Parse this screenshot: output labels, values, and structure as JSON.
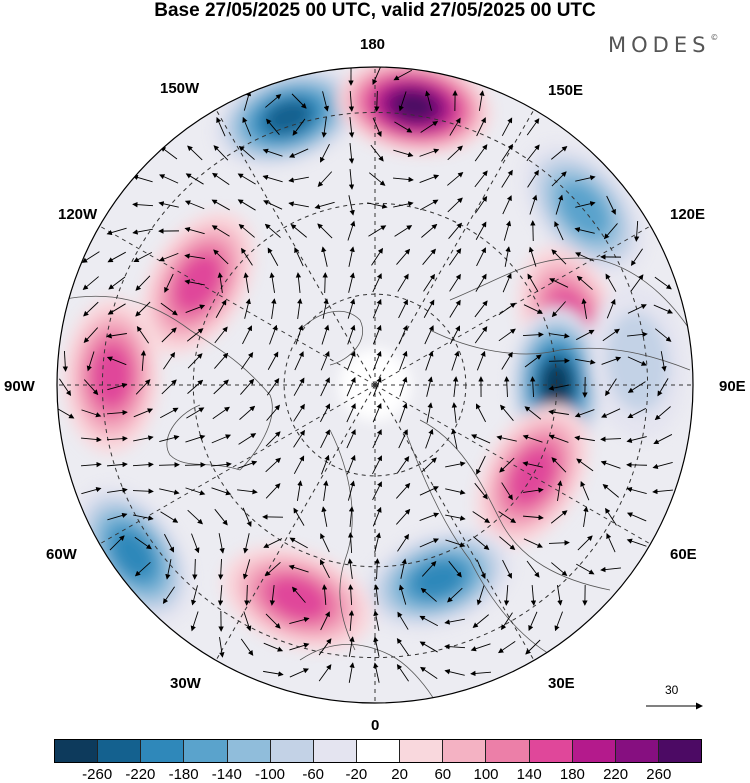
{
  "title": "Base 27/05/2025 00 UTC, valid 27/05/2025 00 UTC",
  "brand": "MODES",
  "brand_mark": "©",
  "longitude_labels": [
    {
      "text": "180",
      "pos": "top"
    },
    {
      "text": "150W",
      "pos": "upper-left"
    },
    {
      "text": "150E",
      "pos": "upper-right"
    },
    {
      "text": "120W",
      "pos": "left-upper"
    },
    {
      "text": "120E",
      "pos": "right-upper"
    },
    {
      "text": "90W",
      "pos": "left"
    },
    {
      "text": "90E",
      "pos": "right"
    },
    {
      "text": "60W",
      "pos": "left-lower"
    },
    {
      "text": "60E",
      "pos": "right-lower"
    },
    {
      "text": "30W",
      "pos": "lower-left"
    },
    {
      "text": "30E",
      "pos": "lower-right"
    },
    {
      "text": "0",
      "pos": "bottom"
    }
  ],
  "reference_vector": "30",
  "colorbar": {
    "ticks": [
      "-260",
      "-220",
      "-180",
      "-140",
      "-100",
      "-60",
      "-20",
      "20",
      "60",
      "100",
      "140",
      "180",
      "220",
      "260"
    ],
    "colors": [
      "#0d3a5c",
      "#14618f",
      "#2f88ba",
      "#5aa3cc",
      "#90bddb",
      "#c3d2e6",
      "#e4e4f0",
      "#ffffff",
      "#f9d8dd",
      "#f4b2c3",
      "#ec7fa8",
      "#e0479a",
      "#b41a8c",
      "#860f80",
      "#4c0a64"
    ]
  },
  "anomaly_centres": [
    {
      "name": "low-north-pacific",
      "sign": "negative",
      "lon": -162,
      "colat": 62,
      "strength": 220
    },
    {
      "name": "high-east-siberia",
      "sign": "positive",
      "lon": 172,
      "colat": 62,
      "strength": 260
    },
    {
      "name": "low-east-asia",
      "sign": "negative",
      "lon": 130,
      "colat": 60,
      "strength": 160
    },
    {
      "name": "high-central-asia",
      "sign": "positive",
      "lon": 108,
      "colat": 45,
      "strength": 160
    },
    {
      "name": "low-siberia",
      "sign": "negative",
      "lon": 90,
      "colat": 40,
      "strength": 260
    },
    {
      "name": "high-west-russia",
      "sign": "positive",
      "lon": 60,
      "colat": 40,
      "strength": 160
    },
    {
      "name": "low-europe",
      "sign": "negative",
      "lon": 18,
      "colat": 45,
      "strength": 200
    },
    {
      "name": "high-north-atlantic",
      "sign": "positive",
      "lon": -20,
      "colat": 50,
      "strength": 160
    },
    {
      "name": "low-west-atlantic",
      "sign": "negative",
      "lon": -55,
      "colat": 65,
      "strength": 200
    },
    {
      "name": "high-central-us",
      "sign": "positive",
      "lon": -92,
      "colat": 58,
      "strength": 160
    },
    {
      "name": "high-western-canada",
      "sign": "positive",
      "lon": -120,
      "colat": 45,
      "strength": 140
    },
    {
      "name": "low-west-pacific",
      "sign": "negative",
      "lon": 95,
      "colat": 58,
      "strength": 80
    }
  ]
}
